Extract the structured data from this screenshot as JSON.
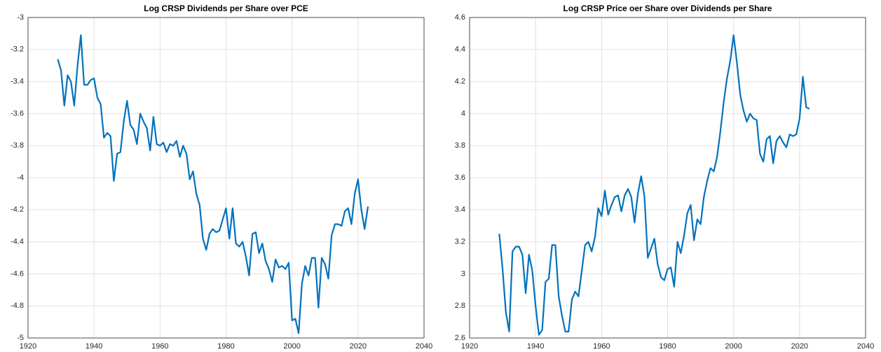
{
  "chart_data": [
    {
      "type": "line",
      "title": "Log CRSP Dividends per Share over PCE",
      "x": [
        1929,
        1930,
        1931,
        1932,
        1933,
        1934,
        1935,
        1936,
        1937,
        1938,
        1939,
        1940,
        1941,
        1942,
        1943,
        1944,
        1945,
        1946,
        1947,
        1948,
        1949,
        1950,
        1951,
        1952,
        1953,
        1954,
        1955,
        1956,
        1957,
        1958,
        1959,
        1960,
        1961,
        1962,
        1963,
        1964,
        1965,
        1966,
        1967,
        1968,
        1969,
        1970,
        1971,
        1972,
        1973,
        1974,
        1975,
        1976,
        1977,
        1978,
        1979,
        1980,
        1981,
        1982,
        1983,
        1984,
        1985,
        1986,
        1987,
        1988,
        1989,
        1990,
        1991,
        1992,
        1993,
        1994,
        1995,
        1996,
        1997,
        1998,
        1999,
        2000,
        2001,
        2002,
        2003,
        2004,
        2005,
        2006,
        2007,
        2008,
        2009,
        2010,
        2011,
        2012,
        2013,
        2014,
        2015,
        2016,
        2017,
        2018,
        2019,
        2020,
        2021,
        2022,
        2023
      ],
      "series": [
        {
          "name": "Log CRSP Dividends per Share over PCE",
          "color": "#0072bd",
          "values": [
            -3.26,
            -3.33,
            -3.55,
            -3.36,
            -3.4,
            -3.55,
            -3.3,
            -3.11,
            -3.42,
            -3.42,
            -3.39,
            -3.38,
            -3.5,
            -3.54,
            -3.75,
            -3.72,
            -3.74,
            -4.02,
            -3.85,
            -3.84,
            -3.65,
            -3.52,
            -3.67,
            -3.7,
            -3.79,
            -3.6,
            -3.65,
            -3.69,
            -3.83,
            -3.62,
            -3.79,
            -3.8,
            -3.78,
            -3.84,
            -3.79,
            -3.8,
            -3.77,
            -3.87,
            -3.8,
            -3.85,
            -4.01,
            -3.96,
            -4.1,
            -4.17,
            -4.38,
            -4.45,
            -4.35,
            -4.32,
            -4.34,
            -4.33,
            -4.26,
            -4.19,
            -4.38,
            -4.19,
            -4.41,
            -4.43,
            -4.4,
            -4.49,
            -4.61,
            -4.35,
            -4.34,
            -4.47,
            -4.41,
            -4.52,
            -4.57,
            -4.65,
            -4.51,
            -4.56,
            -4.55,
            -4.57,
            -4.53,
            -4.89,
            -4.88,
            -4.97,
            -4.66,
            -4.55,
            -4.61,
            -4.5,
            -4.5,
            -4.81,
            -4.5,
            -4.54,
            -4.63,
            -4.36,
            -4.29,
            -4.29,
            -4.3,
            -4.21,
            -4.19,
            -4.29,
            -4.1,
            -4.01,
            -4.2,
            -4.32,
            -4.18
          ]
        }
      ],
      "xlim": [
        1920,
        2040
      ],
      "xticks": [
        1920,
        1940,
        1960,
        1980,
        2000,
        2020,
        2040
      ],
      "ylim": [
        -5,
        -3
      ],
      "yticks": [
        -5,
        -4.8,
        -4.6,
        -4.4,
        -4.2,
        -4,
        -3.8,
        -3.6,
        -3.4,
        -3.2,
        -3
      ],
      "grid": true
    },
    {
      "type": "line",
      "title": "Log CRSP Price oer Share over Dividends per Share",
      "x": [
        1929,
        1930,
        1931,
        1932,
        1933,
        1934,
        1935,
        1936,
        1937,
        1938,
        1939,
        1940,
        1941,
        1942,
        1943,
        1944,
        1945,
        1946,
        1947,
        1948,
        1949,
        1950,
        1951,
        1952,
        1953,
        1954,
        1955,
        1956,
        1957,
        1958,
        1959,
        1960,
        1961,
        1962,
        1963,
        1964,
        1965,
        1966,
        1967,
        1968,
        1969,
        1970,
        1971,
        1972,
        1973,
        1974,
        1975,
        1976,
        1977,
        1978,
        1979,
        1980,
        1981,
        1982,
        1983,
        1984,
        1985,
        1986,
        1987,
        1988,
        1989,
        1990,
        1991,
        1992,
        1993,
        1994,
        1995,
        1996,
        1997,
        1998,
        1999,
        2000,
        2001,
        2002,
        2003,
        2004,
        2005,
        2006,
        2007,
        2008,
        2009,
        2010,
        2011,
        2012,
        2013,
        2014,
        2015,
        2016,
        2017,
        2018,
        2019,
        2020,
        2021,
        2022,
        2023
      ],
      "series": [
        {
          "name": "Log CRSP Price oer Share over Dividends per Share",
          "color": "#0072bd",
          "values": [
            3.25,
            3.03,
            2.76,
            2.64,
            3.14,
            3.17,
            3.17,
            3.12,
            2.88,
            3.12,
            3.02,
            2.8,
            2.62,
            2.65,
            2.95,
            2.97,
            3.18,
            3.18,
            2.86,
            2.74,
            2.64,
            2.64,
            2.84,
            2.89,
            2.86,
            3.02,
            3.18,
            3.2,
            3.14,
            3.23,
            3.41,
            3.36,
            3.52,
            3.37,
            3.43,
            3.48,
            3.49,
            3.39,
            3.49,
            3.53,
            3.48,
            3.32,
            3.5,
            3.61,
            3.48,
            3.1,
            3.16,
            3.22,
            3.06,
            2.98,
            2.96,
            3.03,
            3.04,
            2.92,
            3.2,
            3.13,
            3.24,
            3.38,
            3.43,
            3.21,
            3.34,
            3.31,
            3.48,
            3.58,
            3.66,
            3.64,
            3.73,
            3.89,
            4.07,
            4.22,
            4.33,
            4.49,
            4.32,
            4.12,
            4.02,
            3.95,
            4.0,
            3.97,
            3.96,
            3.75,
            3.7,
            3.84,
            3.86,
            3.69,
            3.83,
            3.86,
            3.82,
            3.79,
            3.87,
            3.86,
            3.87,
            3.97,
            4.23,
            4.04,
            4.03
          ]
        }
      ],
      "xlim": [
        1920,
        2040
      ],
      "xticks": [
        1920,
        1940,
        1960,
        1980,
        2000,
        2020,
        2040
      ],
      "ylim": [
        2.6,
        4.6
      ],
      "yticks": [
        2.6,
        2.8,
        3,
        3.2,
        3.4,
        3.6,
        3.8,
        4,
        4.2,
        4.4,
        4.6
      ],
      "grid": true
    }
  ]
}
